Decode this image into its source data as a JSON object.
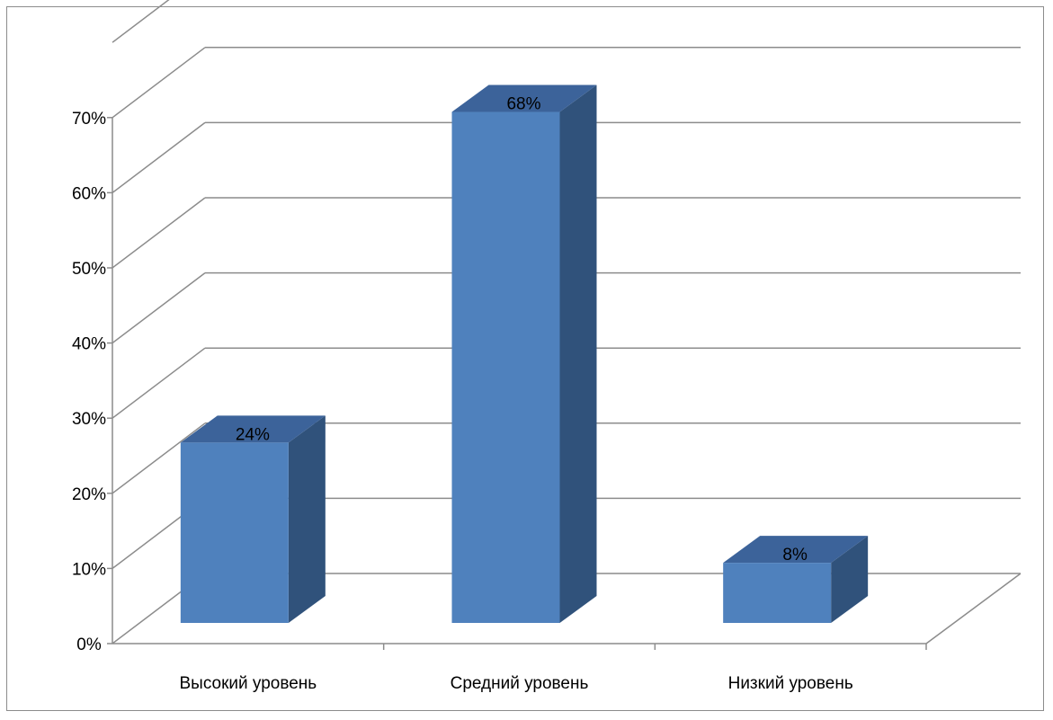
{
  "chart_data": {
    "type": "bar",
    "style": "3d-column",
    "categories": [
      "Высокий уровень",
      "Средний уровень",
      "Низкий уровень"
    ],
    "values": [
      24,
      68,
      8
    ],
    "value_labels": [
      "24%",
      "68%",
      "8%"
    ],
    "y_ticks": [
      "0%",
      "10%",
      "20%",
      "30%",
      "40%",
      "50%",
      "60%",
      "70%"
    ],
    "ylim": [
      0,
      70
    ],
    "title": "",
    "xlabel": "",
    "ylabel": "",
    "grid": true,
    "legend": "none",
    "colors": {
      "bar_front": "#4f81bd",
      "bar_side": "#30527b",
      "bar_top": "#3c639a",
      "grid": "#8c8c8c"
    }
  }
}
